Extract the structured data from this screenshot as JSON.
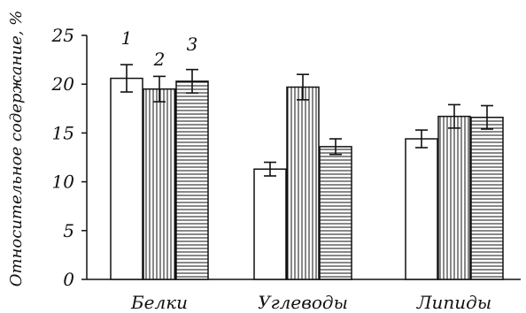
{
  "chart_data": {
    "type": "bar",
    "title": "",
    "xlabel": "",
    "ylabel": "Относительное содержание, %",
    "ylim": [
      0,
      25
    ],
    "yticks": [
      0,
      5,
      10,
      15,
      20,
      25
    ],
    "grid": false,
    "categories": [
      "Белки",
      "Углеводы",
      "Липиды"
    ],
    "series": [
      {
        "name": "1",
        "pattern": "blank",
        "values": [
          20.6,
          11.3,
          14.4
        ],
        "errors": [
          1.4,
          0.7,
          0.9
        ]
      },
      {
        "name": "2",
        "pattern": "vertical-stripes",
        "values": [
          19.5,
          19.7,
          16.7
        ],
        "errors": [
          1.3,
          1.3,
          1.2
        ]
      },
      {
        "name": "3",
        "pattern": "horizontal-stripes",
        "values": [
          20.3,
          13.6,
          16.6
        ],
        "errors": [
          1.2,
          0.8,
          1.2
        ]
      }
    ],
    "series_labels_on": 0
  }
}
